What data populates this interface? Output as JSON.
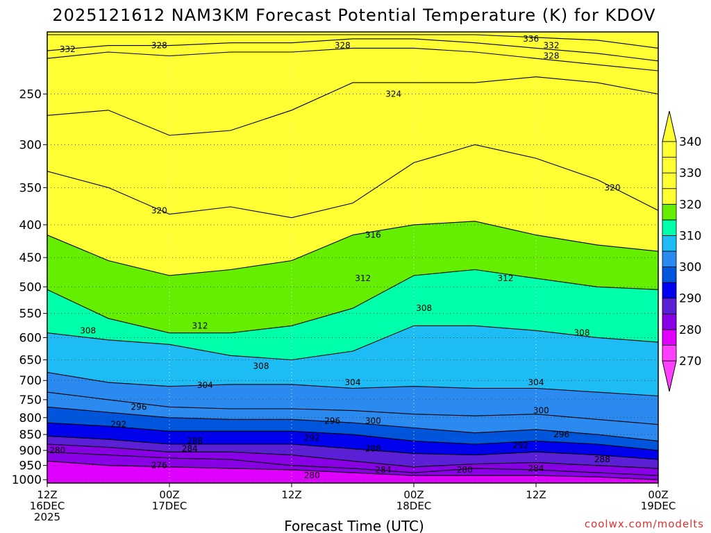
{
  "chart_data": {
    "type": "heatmap",
    "title": "2025121612 NAM3KM Forecast Potential Temperature (K) for KDOV",
    "xlabel": "Forecast Time (UTC)",
    "ylabel": "",
    "credit": "coolwx.com/modelts",
    "x_range_hours": [
      0,
      60
    ],
    "x_ticks": [
      {
        "hour": 0,
        "lines": [
          "12Z",
          "16DEC",
          "2025"
        ]
      },
      {
        "hour": 12,
        "lines": [
          "00Z",
          "17DEC"
        ]
      },
      {
        "hour": 24,
        "lines": [
          "12Z"
        ]
      },
      {
        "hour": 36,
        "lines": [
          "00Z",
          "18DEC"
        ]
      },
      {
        "hour": 48,
        "lines": [
          "12Z"
        ]
      },
      {
        "hour": 60,
        "lines": [
          "00Z",
          "19DEC"
        ]
      }
    ],
    "y_axis": {
      "quantity": "pressure",
      "units": "hPa",
      "range": [
        200,
        1012
      ],
      "scale": "log",
      "inverted": true
    },
    "y_ticks": [
      250,
      300,
      350,
      400,
      450,
      500,
      550,
      600,
      650,
      700,
      750,
      800,
      850,
      900,
      950,
      1000
    ],
    "colorbar": {
      "levels": [
        270,
        280,
        290,
        300,
        310,
        320,
        330,
        340
      ],
      "colors": [
        "#ff40ff",
        "#e000ff",
        "#8a00e6",
        "#5b1fd6",
        "#0000ee",
        "#0055dd",
        "#2a8af0",
        "#1ebcf5",
        "#00ffaa",
        "#66ee00",
        "#ffff33"
      ]
    },
    "contour_interval": 4,
    "isotherm_profiles": {
      "hours": [
        0,
        6,
        12,
        18,
        24,
        30,
        36,
        42,
        48,
        54,
        60
      ],
      "lines": [
        {
          "theta": 276,
          "pressure": [
            935,
            950,
            955,
            960,
            965,
            975,
            985,
            985,
            985,
            990,
            1000
          ]
        },
        {
          "theta": 280,
          "pressure": [
            905,
            915,
            925,
            930,
            950,
            960,
            975,
            960,
            965,
            975,
            985
          ]
        },
        {
          "theta": 284,
          "pressure": [
            880,
            890,
            905,
            905,
            915,
            935,
            955,
            945,
            940,
            950,
            960
          ]
        },
        {
          "theta": 288,
          "pressure": [
            855,
            865,
            880,
            880,
            880,
            895,
            910,
            915,
            905,
            915,
            930
          ]
        },
        {
          "theta": 292,
          "pressure": [
            815,
            825,
            840,
            840,
            840,
            850,
            870,
            880,
            870,
            880,
            900
          ]
        },
        {
          "theta": 296,
          "pressure": [
            770,
            785,
            800,
            805,
            805,
            815,
            830,
            845,
            835,
            850,
            870
          ]
        },
        {
          "theta": 300,
          "pressure": [
            730,
            750,
            770,
            775,
            775,
            780,
            790,
            795,
            790,
            805,
            820
          ]
        },
        {
          "theta": 304,
          "pressure": [
            680,
            705,
            715,
            710,
            710,
            720,
            715,
            720,
            720,
            730,
            740
          ]
        },
        {
          "theta": 308,
          "pressure": [
            590,
            605,
            615,
            640,
            650,
            630,
            575,
            575,
            585,
            600,
            610
          ]
        },
        {
          "theta": 312,
          "pressure": [
            505,
            560,
            590,
            590,
            575,
            540,
            480,
            470,
            485,
            500,
            505
          ]
        },
        {
          "theta": 316,
          "pressure": [
            415,
            455,
            480,
            470,
            455,
            415,
            400,
            395,
            415,
            430,
            440
          ]
        },
        {
          "theta": 320,
          "pressure": [
            330,
            350,
            385,
            375,
            390,
            370,
            320,
            300,
            315,
            340,
            380
          ]
        },
        {
          "theta": 324,
          "pressure": [
            270,
            265,
            290,
            285,
            265,
            240,
            240,
            240,
            235,
            240,
            250
          ]
        },
        {
          "theta": 328,
          "pressure": [
            220,
            215,
            218,
            215,
            215,
            212,
            212,
            215,
            220,
            225,
            230
          ]
        },
        {
          "theta": 332,
          "pressure": [
            214,
            210,
            210,
            208,
            208,
            205,
            205,
            208,
            212,
            216,
            222
          ]
        },
        {
          "theta": 336,
          "pressure": [
            202,
            202,
            202,
            202,
            202,
            202,
            202,
            202,
            204,
            206,
            212
          ]
        }
      ]
    },
    "contour_labels": [
      {
        "text": "332",
        "hour": 2.0,
        "pressure": 213
      },
      {
        "text": "328",
        "hour": 11.0,
        "pressure": 210
      },
      {
        "text": "328",
        "hour": 29.0,
        "pressure": 210
      },
      {
        "text": "336",
        "hour": 47.5,
        "pressure": 205
      },
      {
        "text": "332",
        "hour": 49.5,
        "pressure": 210
      },
      {
        "text": "328",
        "hour": 49.5,
        "pressure": 218
      },
      {
        "text": "324",
        "hour": 34.0,
        "pressure": 250
      },
      {
        "text": "320",
        "hour": 11.0,
        "pressure": 380
      },
      {
        "text": "320",
        "hour": 55.5,
        "pressure": 350
      },
      {
        "text": "316",
        "hour": 32.0,
        "pressure": 415
      },
      {
        "text": "312",
        "hour": 31.0,
        "pressure": 485
      },
      {
        "text": "312",
        "hour": 45.0,
        "pressure": 485
      },
      {
        "text": "312",
        "hour": 15.0,
        "pressure": 575
      },
      {
        "text": "308",
        "hour": 4.0,
        "pressure": 585
      },
      {
        "text": "308",
        "hour": 37.0,
        "pressure": 540
      },
      {
        "text": "308",
        "hour": 52.5,
        "pressure": 590
      },
      {
        "text": "308",
        "hour": 21.0,
        "pressure": 665
      },
      {
        "text": "304",
        "hour": 15.5,
        "pressure": 712
      },
      {
        "text": "304",
        "hour": 30.0,
        "pressure": 705
      },
      {
        "text": "304",
        "hour": 48.0,
        "pressure": 705
      },
      {
        "text": "300",
        "hour": 32.0,
        "pressure": 810
      },
      {
        "text": "300",
        "hour": 48.5,
        "pressure": 780
      },
      {
        "text": "296",
        "hour": 9.0,
        "pressure": 770
      },
      {
        "text": "296",
        "hour": 28.0,
        "pressure": 810
      },
      {
        "text": "296",
        "hour": 50.5,
        "pressure": 850
      },
      {
        "text": "292",
        "hour": 7.0,
        "pressure": 820
      },
      {
        "text": "292",
        "hour": 26.0,
        "pressure": 860
      },
      {
        "text": "292",
        "hour": 46.5,
        "pressure": 885
      },
      {
        "text": "288",
        "hour": 14.5,
        "pressure": 870
      },
      {
        "text": "288",
        "hour": 32.0,
        "pressure": 895
      },
      {
        "text": "288",
        "hour": 54.5,
        "pressure": 930
      },
      {
        "text": "284",
        "hour": 14.0,
        "pressure": 895
      },
      {
        "text": "284",
        "hour": 33.0,
        "pressure": 965
      },
      {
        "text": "284",
        "hour": 48.0,
        "pressure": 960
      },
      {
        "text": "280",
        "hour": 1.0,
        "pressure": 900
      },
      {
        "text": "280",
        "hour": 26.0,
        "pressure": 985
      },
      {
        "text": "280",
        "hour": 41.0,
        "pressure": 965
      },
      {
        "text": "276",
        "hour": 11.0,
        "pressure": 950
      }
    ]
  }
}
